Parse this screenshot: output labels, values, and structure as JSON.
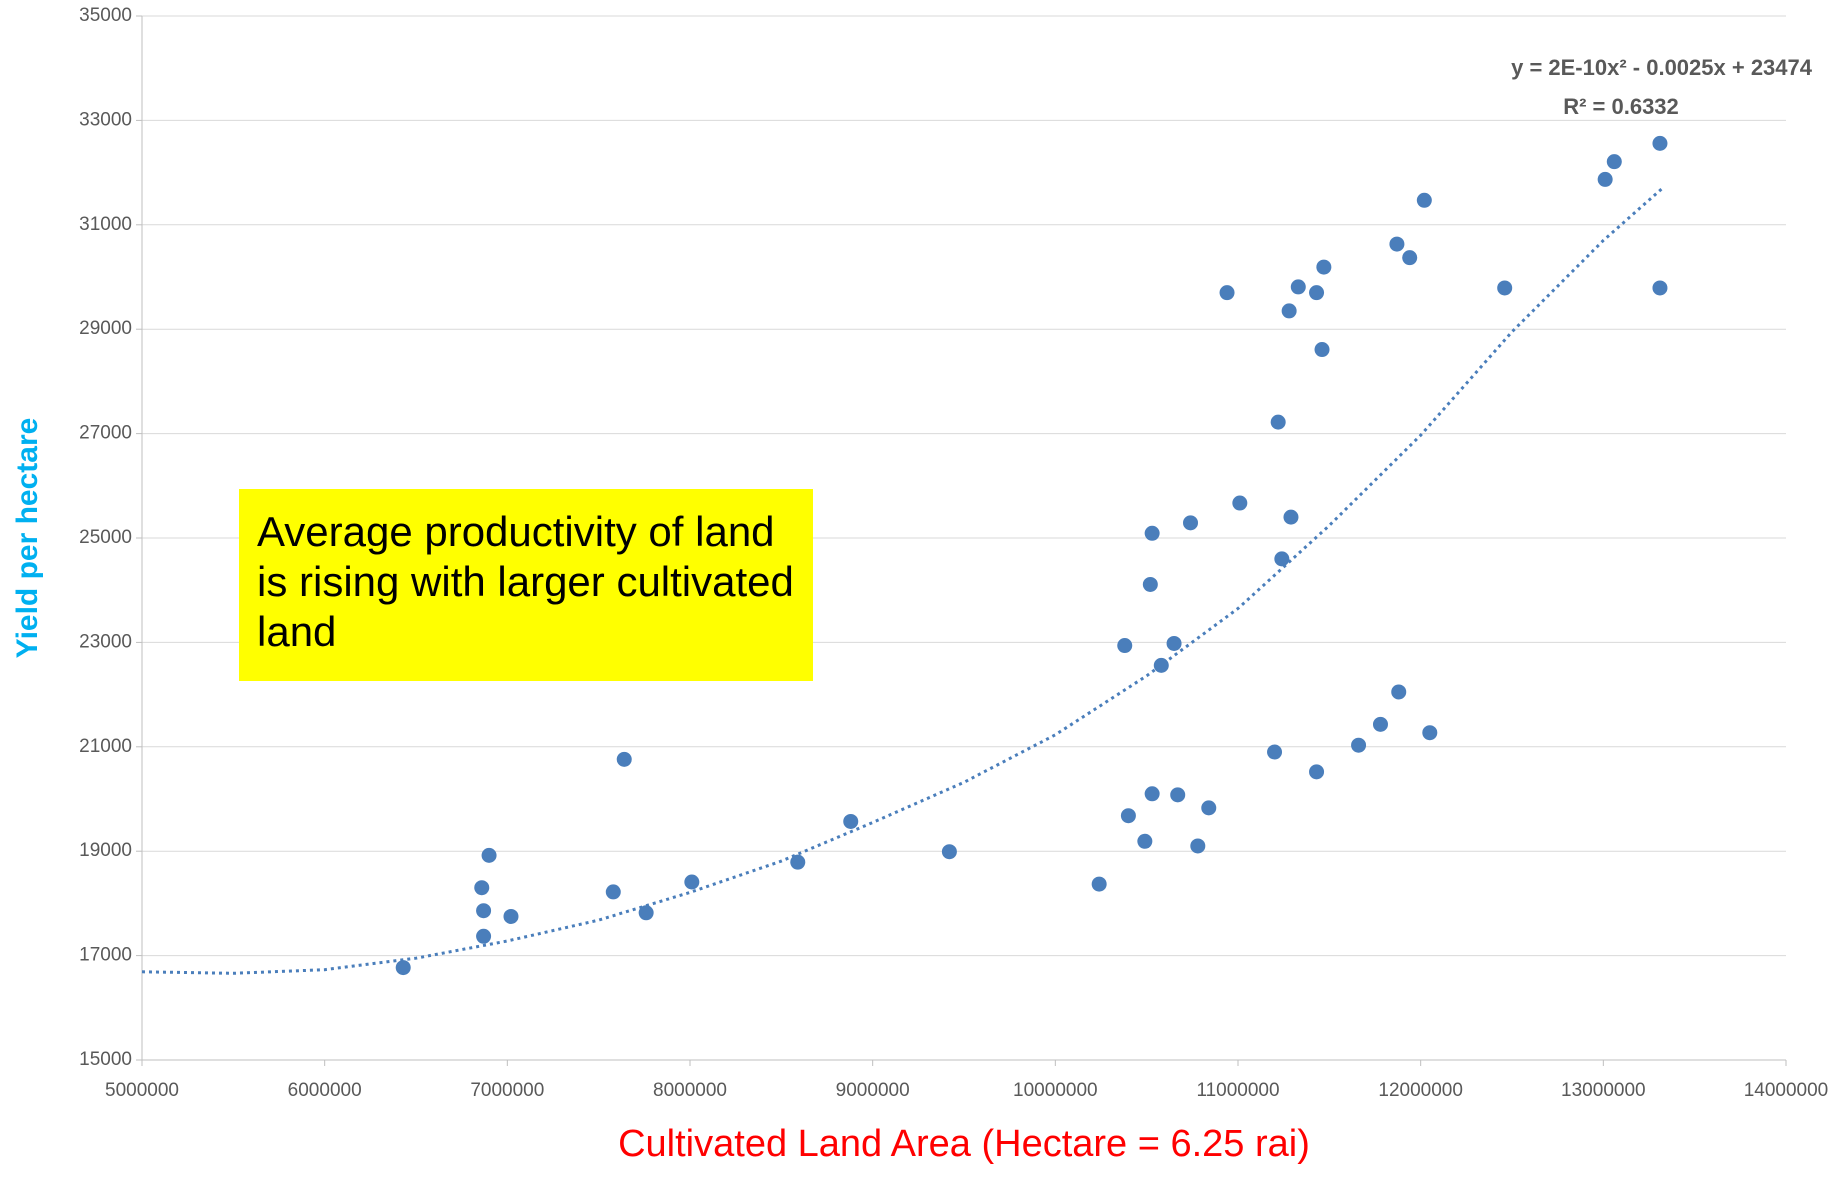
{
  "chart_data": {
    "type": "scatter",
    "x_label": "Cultivated Land Area (Hectare = 6.25 rai)",
    "y_label": "Yield per hectare",
    "annotation": "Average productivity of land is rising with larger cultivated land",
    "equation": "y = 2E-10x² - 0.0025x + 23474",
    "r_squared": "R² = 0.6332",
    "color": "#4a7ebb",
    "x": [
      6430000,
      6870000,
      6870000,
      6860000,
      6900000,
      7020000,
      7580000,
      7760000,
      7640000,
      8010000,
      8590000,
      8880000,
      9420000,
      10240000,
      10380000,
      10400000,
      10490000,
      10520000,
      10530000,
      10530000,
      10580000,
      10650000,
      10670000,
      10740000,
      10780000,
      10840000,
      10940000,
      11010000,
      11200000,
      11220000,
      11240000,
      11280000,
      11290000,
      11330000,
      11430000,
      11430000,
      11460000,
      11470000,
      11660000,
      11780000,
      11870000,
      11880000,
      11940000,
      12020000,
      12050000,
      12460000,
      13010000,
      13060000,
      13310000,
      13310000
    ],
    "values": [
      16770,
      17370,
      17860,
      18300,
      18920,
      17750,
      18220,
      17820,
      20760,
      18410,
      18790,
      19570,
      18990,
      18370,
      22940,
      19680,
      19190,
      24110,
      25090,
      20100,
      22560,
      22980,
      20080,
      25290,
      19100,
      19830,
      29700,
      25670,
      20900,
      27220,
      24600,
      29350,
      25400,
      29810,
      29700,
      20520,
      28610,
      30190,
      21030,
      21430,
      30630,
      22050,
      30370,
      31470,
      21270,
      29790,
      31870,
      32210,
      32560,
      29790
    ],
    "trendline": {
      "x": [
        5000000,
        5500000,
        6000000,
        6500000,
        7000000,
        7500000,
        8000000,
        8500000,
        9000000,
        9500000,
        10000000,
        10500000,
        11000000,
        11500000,
        12000000,
        12500000,
        13000000,
        13330000
      ],
      "values": [
        16690,
        16660,
        16730,
        16950,
        17280,
        17680,
        18210,
        18810,
        19550,
        20320,
        21230,
        22360,
        23650,
        25240,
        26970,
        28950,
        30700,
        31720
      ]
    },
    "xlim": [
      5000000,
      14000000
    ],
    "xticks": [
      5000000,
      6000000,
      7000000,
      8000000,
      9000000,
      10000000,
      11000000,
      12000000,
      13000000,
      14000000
    ],
    "ylim": [
      15000,
      35000
    ],
    "yticks": [
      15000,
      17000,
      19000,
      21000,
      23000,
      25000,
      27000,
      29000,
      31000,
      33000,
      35000
    ],
    "grid": true
  }
}
